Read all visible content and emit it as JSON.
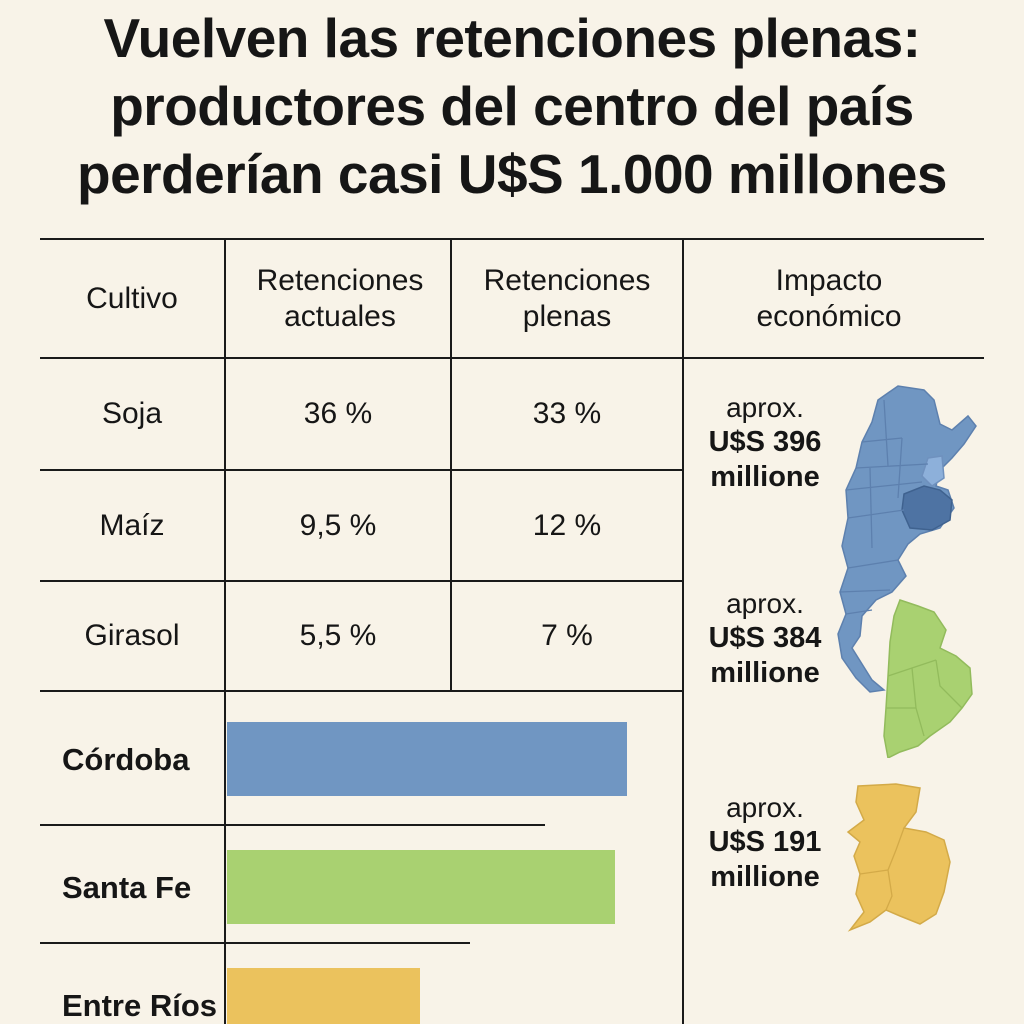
{
  "title": {
    "line1": "Vuelven las retenciones plenas:",
    "line2": "productores del centro del país",
    "line3": "perderían casi U$S 1.000 millones"
  },
  "table": {
    "headers": [
      "Cultivo",
      "Retenciones actuales",
      "Retenciones plenas",
      "Impacto económico"
    ],
    "rows": [
      {
        "crop": "Soja",
        "actual": "36 %",
        "plena": "33 %"
      },
      {
        "crop": "Maíz",
        "actual": "9,5 %",
        "plena": "12 %"
      },
      {
        "crop": "Girasol",
        "actual": "5,5 %",
        "plena": "7 %"
      }
    ]
  },
  "impacts": [
    {
      "prefix": "aprox.",
      "amount": "U$S 396",
      "unit": "millione"
    },
    {
      "prefix": "aprox.",
      "amount": "U$S 384",
      "unit": "millione"
    },
    {
      "prefix": "aprox.",
      "amount": "U$S 191",
      "unit": "millione"
    }
  ],
  "colors": {
    "cordoba": "#7096c2",
    "santa_fe": "#a9d171",
    "entre_rios": "#ebc25d",
    "background": "#f8f3e8",
    "map_dark": "#4e73a3",
    "map_light": "#8db0da"
  },
  "map_icons": [
    "argentina-map-icon",
    "santa-fe-map-icon",
    "entre-rios-map-icon"
  ],
  "chart_data": {
    "type": "bar",
    "orientation": "horizontal",
    "categories": [
      "Córdoba",
      "Santa Fe",
      "Entre Ríos"
    ],
    "values": [
      396,
      384,
      191
    ],
    "colors": [
      "#7096c2",
      "#a9d171",
      "#ebc25d"
    ],
    "title": "",
    "xlabel": "",
    "ylabel": "",
    "xlim": [
      0,
      440
    ],
    "grid": false
  }
}
